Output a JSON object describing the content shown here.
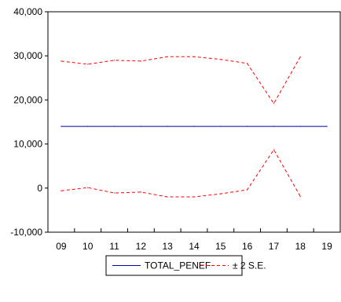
{
  "chart_data": {
    "type": "line",
    "x": [
      "09",
      "10",
      "11",
      "12",
      "13",
      "14",
      "15",
      "16",
      "17",
      "18",
      "19"
    ],
    "ylim": [
      -10000,
      40000
    ],
    "yticks": [
      -10000,
      0,
      10000,
      20000,
      30000,
      40000
    ],
    "ytick_labels": [
      "-10,000",
      "0",
      "10,000",
      "20,000",
      "30,000",
      "40,000"
    ],
    "grid": false,
    "legend": "bottom-center",
    "series": [
      {
        "name": "TOTAL_PENEF",
        "color": "#0000aa",
        "style": "solid",
        "x": [
          "09",
          "10",
          "11",
          "12",
          "13",
          "14",
          "15",
          "16",
          "17",
          "18",
          "19"
        ],
        "values": [
          14000,
          14000,
          14000,
          14000,
          14000,
          14000,
          14000,
          14000,
          14000,
          14000,
          14000
        ]
      },
      {
        "name": "± 2 S.E.",
        "color": "#ff0000",
        "style": "dashed",
        "x": [
          "09",
          "10",
          "11",
          "12",
          "13",
          "14",
          "15",
          "16",
          "17",
          "18"
        ],
        "values": [
          28800,
          28100,
          29000,
          28800,
          29800,
          29800,
          29200,
          28300,
          19200,
          29800
        ]
      },
      {
        "name": "",
        "color": "#ff0000",
        "style": "dashed",
        "x": [
          "09",
          "10",
          "11",
          "12",
          "13",
          "14",
          "15",
          "16",
          "17",
          "18"
        ],
        "values": [
          -600,
          100,
          -1100,
          -900,
          -2000,
          -2000,
          -1300,
          -400,
          8700,
          -1900
        ]
      }
    ]
  }
}
